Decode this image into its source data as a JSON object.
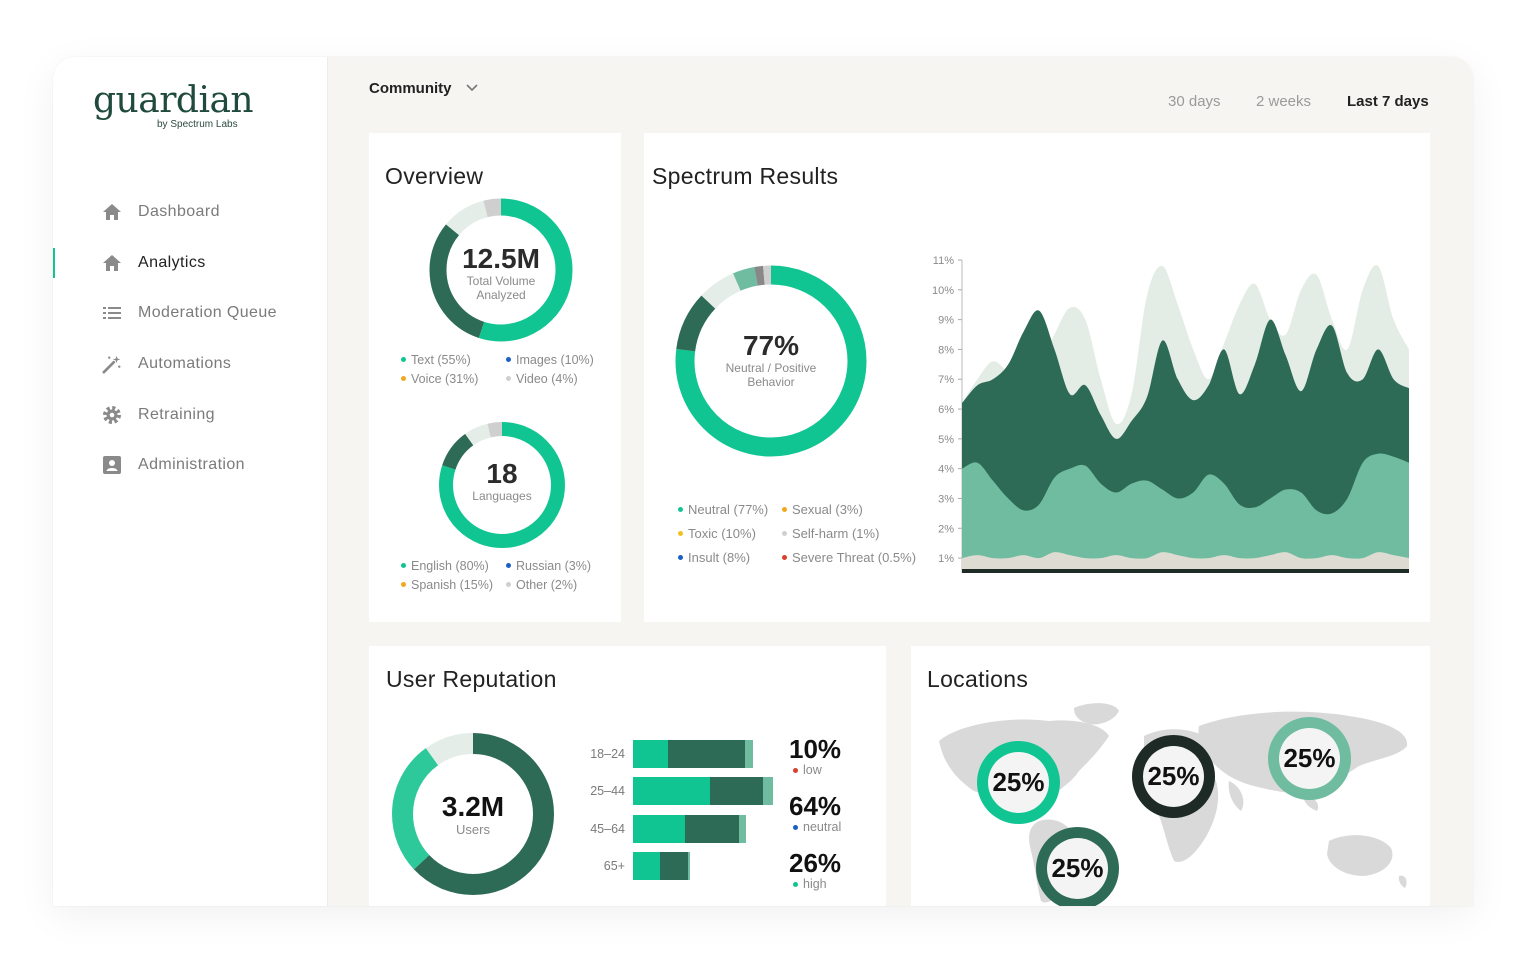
{
  "brand": {
    "name": "guardian",
    "tagline": "by Spectrum Labs"
  },
  "sidebar": {
    "items": [
      {
        "label": "Dashboard",
        "icon": "home-icon"
      },
      {
        "label": "Analytics",
        "icon": "home-icon",
        "active": true
      },
      {
        "label": "Moderation Queue",
        "icon": "list-icon"
      },
      {
        "label": "Automations",
        "icon": "magic-wand-icon"
      },
      {
        "label": "Retraining",
        "icon": "gear-icon"
      },
      {
        "label": "Administration",
        "icon": "id-card-icon"
      }
    ]
  },
  "header": {
    "community_select": "Community",
    "ranges": [
      "30 days",
      "2 weeks",
      "Last 7 days"
    ],
    "active_range": "Last 7 days"
  },
  "colors": {
    "accent": "#11c592",
    "dark_green": "#2e6b57",
    "mid_green": "#6fbca0",
    "light_green": "#e4ede7",
    "gray": "#dcdcdc",
    "orange": "#f0a81e",
    "blue": "#1c5fc5",
    "red": "#d9412b"
  },
  "overview": {
    "title": "Overview",
    "volume": {
      "value": "12.5M",
      "caption_line1": "Total Volume",
      "caption_line2": "Analyzed"
    },
    "volume_legend": [
      {
        "label": "Text (55%)",
        "color": "#11c592"
      },
      {
        "label": "Images (10%)",
        "color": "#1c5fc5"
      },
      {
        "label": "Voice (31%)",
        "color": "#f0a81e"
      },
      {
        "label": "Video (4%)",
        "color": "#cfcfcf"
      }
    ],
    "languages": {
      "value": "18",
      "caption": "Languages"
    },
    "languages_legend": [
      {
        "label": "English (80%)",
        "color": "#11c592"
      },
      {
        "label": "Russian (3%)",
        "color": "#1c5fc5"
      },
      {
        "label": "Spanish (15%)",
        "color": "#f0a81e"
      },
      {
        "label": "Other (2%)",
        "color": "#cfcfcf"
      }
    ]
  },
  "spectrum": {
    "title": "Spectrum Results",
    "value": "77%",
    "caption_line1": "Neutral / Positive",
    "caption_line2": "Behavior",
    "legend": [
      {
        "label": "Neutral (77%)",
        "color": "#11c592"
      },
      {
        "label": "Sexual (3%)",
        "color": "#f0a81e"
      },
      {
        "label": "Toxic (10%)",
        "color": "#f0c21e"
      },
      {
        "label": "Self-harm (1%)",
        "color": "#cfcfcf"
      },
      {
        "label": "Insult (8%)",
        "color": "#1c5fc5"
      },
      {
        "label": "Severe Threat (0.5%)",
        "color": "#d9412b"
      }
    ]
  },
  "chart_data": {
    "type": "area",
    "y_ticks": [
      "11%",
      "10%",
      "9%",
      "8%",
      "7%",
      "6%",
      "5%",
      "4%",
      "3%",
      "2%",
      "1%"
    ],
    "ylim": [
      0.5,
      11
    ],
    "x": [
      0,
      1,
      2,
      3,
      4,
      5,
      6,
      7,
      8,
      9,
      10,
      11,
      12,
      13,
      14,
      15,
      16,
      17,
      18,
      19,
      20,
      21,
      22,
      23,
      24,
      25,
      26,
      27,
      28,
      29
    ],
    "series": [
      {
        "values": [
          6.2,
          7.0,
          7.6,
          7.2,
          6.6,
          7.4,
          8.5,
          9.4,
          9.0,
          7.0,
          5.5,
          6.5,
          9.8,
          10.8,
          9.5,
          8.0,
          7.0,
          8.2,
          9.5,
          10.2,
          9.0,
          8.5,
          10.0,
          10.5,
          9.0,
          8.0,
          10.0,
          10.8,
          9.0,
          8.0
        ],
        "color": "#e3ece5"
      },
      {
        "values": [
          6.2,
          6.8,
          7.0,
          7.5,
          8.6,
          9.3,
          8.0,
          6.5,
          6.8,
          5.8,
          5.0,
          5.6,
          6.4,
          8.3,
          7.0,
          6.3,
          6.8,
          8.0,
          6.5,
          7.5,
          9.0,
          7.8,
          6.6,
          8.0,
          8.8,
          7.2,
          7.0,
          8.0,
          7.0,
          6.7
        ],
        "color": "#2e6b57"
      },
      {
        "values": [
          4.0,
          4.2,
          3.6,
          3.0,
          2.6,
          2.8,
          3.7,
          4.0,
          4.1,
          3.5,
          3.2,
          3.5,
          3.6,
          3.3,
          3.0,
          3.2,
          3.8,
          3.5,
          2.8,
          2.7,
          3.0,
          3.3,
          3.2,
          2.6,
          2.5,
          3.0,
          4.2,
          4.5,
          4.4,
          4.2
        ],
        "color": "#6fbca0"
      },
      {
        "values": [
          1.0,
          1.1,
          1.0,
          1.0,
          1.1,
          1.0,
          1.2,
          1.1,
          1.0,
          1.0,
          1.1,
          1.0,
          1.0,
          1.2,
          1.1,
          1.0,
          1.0,
          1.1,
          1.0,
          1.0,
          1.1,
          1.2,
          1.0,
          1.0,
          1.1,
          1.0,
          1.0,
          1.2,
          1.1,
          1.0
        ],
        "color": "#dedbd2"
      }
    ]
  },
  "reputation": {
    "title": "User Reputation",
    "value": "3.2M",
    "caption": "Users",
    "bars": [
      {
        "label": "18–24",
        "values": [
          0.25,
          0.55,
          0.06
        ]
      },
      {
        "label": "25–44",
        "values": [
          0.55,
          0.38,
          0.07
        ]
      },
      {
        "label": "45–64",
        "values": [
          0.37,
          0.39,
          0.05
        ]
      },
      {
        "label": "65+",
        "values": [
          0.19,
          0.2,
          0.02
        ]
      }
    ],
    "stats": [
      {
        "pct": "10%",
        "cap": "low",
        "color": "#d9412b"
      },
      {
        "pct": "64%",
        "cap": "neutral",
        "color": "#1c5fc5"
      },
      {
        "pct": "26%",
        "cap": "high",
        "color": "#11c592"
      }
    ]
  },
  "locations": {
    "title": "Locations",
    "bubbles": [
      {
        "label": "25%",
        "ring": "#11c592"
      },
      {
        "label": "25%",
        "ring": "#1d2a26"
      },
      {
        "label": "25%",
        "ring": "#6fbca0"
      },
      {
        "label": "25%",
        "ring": "#2e6b57"
      }
    ]
  }
}
